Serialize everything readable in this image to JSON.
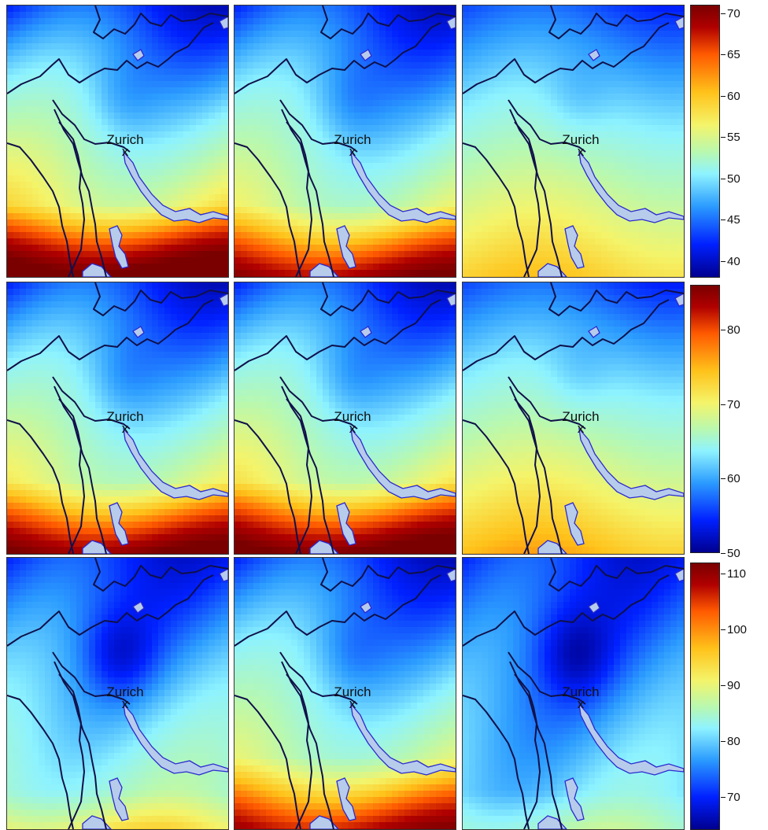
{
  "city_label": "Zurich",
  "city_marker": "x",
  "colormap": {
    "name": "jet-like",
    "stops": [
      "#00008f",
      "#0020ff",
      "#2b9bff",
      "#8ef3ff",
      "#b8f8b0",
      "#f4f46a",
      "#ffc21a",
      "#ff5a00",
      "#b00000",
      "#7a0000"
    ]
  },
  "colors": {
    "lake_fill": "#b7cbeb",
    "lake_border": "#2a2ad0",
    "border_line": "#10104a"
  },
  "rows": [
    {
      "colorbar_ticks": [
        "40",
        "45",
        "50",
        "55",
        "60",
        "65",
        "70"
      ],
      "colorbar_range": [
        38,
        71
      ],
      "panels": [
        {
          "field": "warm-south",
          "intensity": 1.0
        },
        {
          "field": "warm-south",
          "intensity": 0.85
        },
        {
          "field": "smooth",
          "intensity": 0.65
        }
      ]
    },
    {
      "colorbar_ticks": [
        "50",
        "60",
        "70",
        "80"
      ],
      "colorbar_range": [
        50,
        86
      ],
      "panels": [
        {
          "field": "warm-south",
          "intensity": 0.9
        },
        {
          "field": "warm-south",
          "intensity": 0.95
        },
        {
          "field": "smooth",
          "intensity": 0.7
        }
      ]
    },
    {
      "colorbar_ticks": [
        "70",
        "80",
        "90",
        "100",
        "110"
      ],
      "colorbar_range": [
        64,
        112
      ],
      "panels": [
        {
          "field": "cool",
          "intensity": 0.6
        },
        {
          "field": "warm-south",
          "intensity": 0.8
        },
        {
          "field": "cool",
          "intensity": 0.4
        }
      ]
    }
  ]
}
